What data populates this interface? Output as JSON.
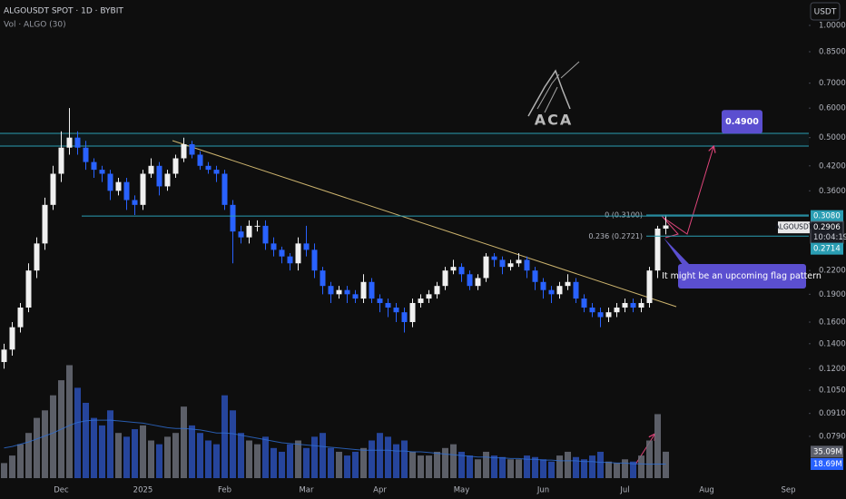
{
  "header": {
    "symbol_line": "ALGOUSDT SPOT · 1D · BYBIT",
    "volume_line": "Vol · ALGO (30)",
    "currency": "USDT",
    "watermark": "ACA"
  },
  "chart_data": {
    "type": "candlestick",
    "categories": [
      null,
      null,
      null,
      null,
      null,
      null,
      null,
      "Dec",
      null,
      null,
      null,
      null,
      null,
      null,
      null,
      null,
      null,
      "2025",
      null,
      null,
      null,
      null,
      null,
      null,
      null,
      null,
      null,
      "Feb",
      null,
      null,
      null,
      null,
      null,
      null,
      null,
      null,
      null,
      "Mar",
      null,
      null,
      null,
      null,
      null,
      null,
      null,
      null,
      "Apr",
      null,
      null,
      null,
      null,
      null,
      null,
      null,
      null,
      null,
      "May",
      null,
      null,
      null,
      null,
      null,
      null,
      null,
      null,
      null,
      "Jun",
      null,
      null,
      null,
      null,
      null,
      null,
      null,
      null,
      null,
      "Jul",
      null,
      null,
      null,
      null,
      null,
      null,
      null,
      null,
      null,
      "Aug",
      null,
      null,
      null,
      null,
      null,
      null,
      null,
      null,
      null,
      "Sep",
      null
    ],
    "open": [
      0.125,
      0.135,
      0.155,
      0.175,
      0.22,
      0.26,
      0.33,
      0.4,
      0.47,
      0.5,
      0.47,
      0.43,
      0.41,
      0.4,
      0.36,
      0.38,
      0.34,
      0.33,
      0.4,
      0.42,
      0.37,
      0.4,
      0.44,
      0.48,
      0.45,
      0.42,
      0.41,
      0.4,
      0.33,
      0.28,
      0.27,
      0.29,
      0.29,
      0.26,
      0.25,
      0.24,
      0.23,
      0.26,
      0.25,
      0.22,
      0.2,
      0.19,
      0.195,
      0.19,
      0.185,
      0.205,
      0.185,
      0.18,
      0.175,
      0.17,
      0.16,
      0.18,
      0.185,
      0.19,
      0.2,
      0.22,
      0.225,
      0.215,
      0.2,
      0.21,
      0.24,
      0.235,
      0.225,
      0.23,
      0.235,
      0.22,
      0.205,
      0.195,
      0.19,
      0.2,
      0.205,
      0.185,
      0.175,
      0.17,
      0.165,
      0.17,
      0.175,
      0.18,
      0.175,
      0.18,
      0.22,
      0.285,
      null,
      null,
      null,
      null,
      null,
      null,
      null,
      null,
      null,
      null,
      null,
      null,
      null,
      null,
      null,
      null
    ],
    "high": [
      0.14,
      0.16,
      0.18,
      0.23,
      0.27,
      0.345,
      0.42,
      0.52,
      0.6,
      0.52,
      0.49,
      0.44,
      0.42,
      0.41,
      0.39,
      0.39,
      0.35,
      0.41,
      0.44,
      0.43,
      0.41,
      0.45,
      0.5,
      0.49,
      0.46,
      0.43,
      0.42,
      0.41,
      0.34,
      0.29,
      0.3,
      0.3,
      0.3,
      0.27,
      0.255,
      0.245,
      0.27,
      0.29,
      0.26,
      0.225,
      0.205,
      0.2,
      0.2,
      0.195,
      0.215,
      0.21,
      0.19,
      0.185,
      0.18,
      0.175,
      0.185,
      0.19,
      0.195,
      0.205,
      0.225,
      0.235,
      0.23,
      0.22,
      0.215,
      0.245,
      0.245,
      0.24,
      0.235,
      0.245,
      0.24,
      0.225,
      0.21,
      0.2,
      0.205,
      0.215,
      0.21,
      0.19,
      0.18,
      0.175,
      0.175,
      0.18,
      0.185,
      0.185,
      0.185,
      0.225,
      0.29,
      0.31,
      null,
      null,
      null,
      null,
      null,
      null,
      null,
      null,
      null,
      null,
      null,
      null,
      null,
      null,
      null,
      null
    ],
    "low": [
      0.12,
      0.13,
      0.15,
      0.17,
      0.21,
      0.25,
      0.32,
      0.38,
      0.45,
      0.45,
      0.41,
      0.39,
      0.38,
      0.34,
      0.35,
      0.32,
      0.31,
      0.32,
      0.39,
      0.35,
      0.36,
      0.39,
      0.43,
      0.44,
      0.41,
      0.4,
      0.38,
      0.32,
      0.23,
      0.26,
      0.26,
      0.28,
      0.25,
      0.24,
      0.23,
      0.22,
      0.22,
      0.24,
      0.21,
      0.19,
      0.18,
      0.185,
      0.18,
      0.18,
      0.18,
      0.18,
      0.17,
      0.165,
      0.16,
      0.15,
      0.155,
      0.175,
      0.18,
      0.185,
      0.195,
      0.215,
      0.205,
      0.195,
      0.195,
      0.205,
      0.225,
      0.215,
      0.22,
      0.225,
      0.21,
      0.195,
      0.185,
      0.18,
      0.185,
      0.195,
      0.18,
      0.17,
      0.165,
      0.155,
      0.16,
      0.165,
      0.17,
      0.17,
      0.17,
      0.175,
      0.21,
      0.275,
      null,
      null,
      null,
      null,
      null,
      null,
      null,
      null,
      null,
      null,
      null,
      null,
      null,
      null,
      null,
      null
    ],
    "close": [
      0.135,
      0.155,
      0.175,
      0.22,
      0.26,
      0.33,
      0.4,
      0.47,
      0.5,
      0.47,
      0.43,
      0.41,
      0.4,
      0.36,
      0.38,
      0.34,
      0.33,
      0.4,
      0.42,
      0.37,
      0.4,
      0.44,
      0.48,
      0.45,
      0.42,
      0.41,
      0.4,
      0.33,
      0.28,
      0.27,
      0.29,
      0.29,
      0.26,
      0.25,
      0.24,
      0.23,
      0.26,
      0.25,
      0.22,
      0.2,
      0.19,
      0.195,
      0.19,
      0.185,
      0.205,
      0.185,
      0.18,
      0.175,
      0.17,
      0.16,
      0.18,
      0.185,
      0.19,
      0.2,
      0.22,
      0.225,
      0.215,
      0.2,
      0.21,
      0.24,
      0.235,
      0.225,
      0.23,
      0.235,
      0.22,
      0.205,
      0.195,
      0.19,
      0.2,
      0.205,
      0.185,
      0.175,
      0.17,
      0.165,
      0.17,
      0.175,
      0.18,
      0.175,
      0.18,
      0.22,
      0.285,
      0.2906,
      null,
      null,
      null,
      null,
      null,
      null,
      null,
      null,
      null,
      null,
      null,
      null,
      null,
      null,
      null,
      null
    ],
    "up_color": "#f0f0f0",
    "down_color": "#2962ff",
    "log_scale": true,
    "grid": false,
    "ylim": [
      0.059,
      1.17
    ],
    "yticks": [
      {
        "value": 1.0,
        "label": "1.0000"
      },
      {
        "value": 0.85,
        "label": "0.8500"
      },
      {
        "value": 0.7,
        "label": "0.7000"
      },
      {
        "value": 0.6,
        "label": "0.6000"
      },
      {
        "value": 0.5,
        "label": "0.5000"
      },
      {
        "value": 0.42,
        "label": "0.4200"
      },
      {
        "value": 0.36,
        "label": "0.3600"
      },
      {
        "value": 0.22,
        "label": "0.2200"
      },
      {
        "value": 0.19,
        "label": "0.1900"
      },
      {
        "value": 0.16,
        "label": "0.1600"
      },
      {
        "value": 0.14,
        "label": "0.1400"
      },
      {
        "value": 0.12,
        "label": "0.1200"
      },
      {
        "value": 0.105,
        "label": "0.1050"
      },
      {
        "value": 0.091,
        "label": "0.0910"
      },
      {
        "value": 0.079,
        "label": "0.0790"
      }
    ],
    "volume": {
      "values": [
        20,
        30,
        45,
        60,
        80,
        90,
        110,
        130,
        150,
        120,
        100,
        80,
        70,
        90,
        60,
        55,
        65,
        70,
        50,
        45,
        55,
        60,
        95,
        70,
        60,
        50,
        45,
        110,
        90,
        60,
        50,
        45,
        55,
        40,
        35,
        45,
        50,
        40,
        55,
        60,
        40,
        35,
        30,
        35,
        40,
        50,
        60,
        55,
        45,
        50,
        35,
        30,
        30,
        35,
        40,
        45,
        35,
        30,
        25,
        35,
        30,
        28,
        25,
        25,
        30,
        28,
        25,
        22,
        30,
        35,
        28,
        25,
        30,
        35,
        22,
        20,
        25,
        22,
        30,
        50,
        85,
        35.09,
        null,
        null,
        null,
        null,
        null,
        null,
        null,
        null,
        null,
        null,
        null,
        null,
        null,
        null,
        null,
        null
      ],
      "up_color": "#6a6d78",
      "down_color": "#2a4fb5",
      "ma": {
        "color": "#2f6fd6",
        "values": [
          40,
          42,
          45,
          48,
          52,
          56,
          60,
          65,
          70,
          74,
          76,
          77,
          77,
          77,
          76,
          75,
          74,
          73,
          71,
          69,
          67,
          66,
          66,
          65,
          64,
          62,
          60,
          60,
          59,
          57,
          55,
          53,
          51,
          49,
          47,
          46,
          45,
          44,
          43,
          42,
          41,
          40,
          39,
          38,
          37,
          37,
          37,
          37,
          36,
          36,
          35,
          35,
          34,
          33,
          32,
          31,
          30,
          29,
          28,
          28,
          27,
          27,
          26,
          26,
          25,
          25,
          24,
          24,
          23,
          23,
          23,
          22,
          22,
          21,
          21,
          20,
          20,
          19,
          19,
          18.5,
          18.6,
          18.69,
          null,
          null,
          null,
          null,
          null,
          null,
          null,
          null,
          null,
          null,
          null,
          null,
          null,
          null,
          null,
          null
        ]
      },
      "tags": [
        {
          "value": 35.09,
          "label": "35.09M",
          "color": "#5d606b"
        },
        {
          "value": 18.69,
          "label": "18.69M",
          "color": "#2962ff"
        }
      ]
    },
    "price_tags": [
      {
        "value": 0.308,
        "label": "0.3080",
        "color": "#2a9db3",
        "line": true
      },
      {
        "value": 0.2906,
        "label": "0.2906",
        "color": "#1b1d24",
        "line": false
      },
      {
        "value": 0.2714,
        "label": "0.2714",
        "color": "#2a9db3",
        "line": false
      }
    ],
    "symbol_label": "ALGOUSDT",
    "countdown": "10:04:19",
    "fib": [
      {
        "label": "0 (0.3100)",
        "value": 0.31
      },
      {
        "label": "0.236 (0.2721)",
        "value": 0.2721
      }
    ],
    "target": {
      "value": 0.49,
      "label": "0.4900"
    },
    "callout": "It might be an upcoming flag pattern"
  }
}
